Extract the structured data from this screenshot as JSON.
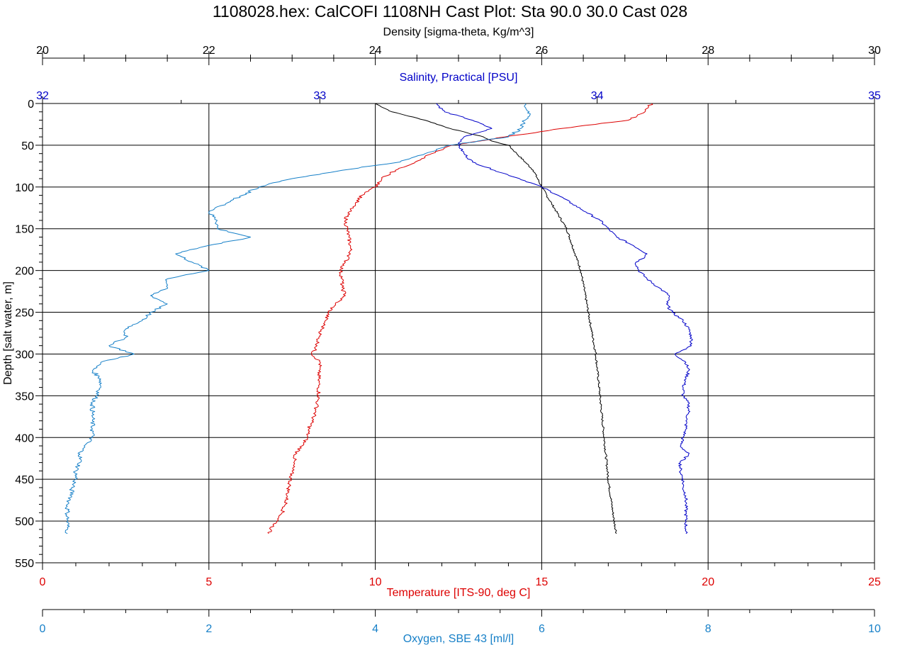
{
  "title": "1108028.hex: CalCOFI 1108NH Cast Plot: Sta 90.0 30.0 Cast 028",
  "colors": {
    "density": "#000000",
    "salinity": "#0000c8",
    "temperature": "#dd0000",
    "oxygen": "#1780c8",
    "grid": "#000000"
  },
  "chart_data": {
    "type": "line",
    "title": "1108028.hex: CalCOFI 1108NH Cast Plot: Sta 90.0 30.0 Cast 028",
    "y_axis": {
      "label": "Depth [salt water, m]",
      "range": [
        0,
        550
      ],
      "inverted": true,
      "ticks": [
        "0",
        "50",
        "100",
        "150",
        "200",
        "250",
        "300",
        "350",
        "400",
        "450",
        "500",
        "550"
      ]
    },
    "x_axes": [
      {
        "id": "density",
        "label": "Density [sigma-theta, Kg/m^3]",
        "position": "top",
        "range": [
          20,
          30
        ],
        "ticks": [
          "20",
          "22",
          "24",
          "26",
          "28",
          "30"
        ],
        "color": "#000000"
      },
      {
        "id": "salinity",
        "label": "Salinity, Practical [PSU]",
        "position": "top",
        "range": [
          32,
          35
        ],
        "ticks": [
          "32",
          "33",
          "34",
          "35"
        ],
        "color": "#0000c8"
      },
      {
        "id": "temperature",
        "label": "Temperature [ITS-90, deg C]",
        "position": "bottom",
        "range": [
          0,
          25
        ],
        "ticks": [
          "0",
          "5",
          "10",
          "15",
          "20",
          "25"
        ],
        "color": "#dd0000"
      },
      {
        "id": "oxygen",
        "label": "Oxygen, SBE 43 [ml/l]",
        "position": "bottom",
        "range": [
          0,
          10
        ],
        "ticks": [
          "0",
          "2",
          "4",
          "6",
          "8",
          "10"
        ],
        "color": "#1780c8"
      }
    ],
    "grid": true,
    "series": [
      {
        "axis": "density",
        "depth": [
          0,
          10,
          20,
          30,
          35,
          40,
          45,
          50,
          60,
          80,
          100,
          120,
          150,
          200,
          250,
          300,
          350,
          400,
          450,
          500,
          515
        ],
        "values": [
          24.0,
          24.2,
          24.6,
          24.9,
          25.1,
          25.3,
          25.4,
          25.6,
          25.7,
          25.9,
          26.0,
          26.12,
          26.3,
          26.47,
          26.56,
          26.65,
          26.7,
          26.75,
          26.8,
          26.87,
          26.9
        ]
      },
      {
        "axis": "salinity",
        "depth": [
          0,
          10,
          20,
          30,
          40,
          50,
          60,
          70,
          80,
          90,
          100,
          110,
          120,
          130,
          140,
          150,
          160,
          170,
          180,
          185,
          190,
          200,
          210,
          220,
          230,
          240,
          250,
          260,
          270,
          280,
          290,
          300,
          310,
          320,
          330,
          340,
          350,
          360,
          370,
          380,
          390,
          400,
          410,
          420,
          430,
          440,
          450,
          460,
          470,
          480,
          490,
          500,
          510,
          515
        ],
        "values": [
          33.42,
          33.45,
          33.55,
          33.62,
          33.52,
          33.5,
          33.52,
          33.55,
          33.63,
          33.72,
          33.8,
          33.86,
          33.91,
          33.96,
          34.01,
          34.04,
          34.07,
          34.13,
          34.18,
          34.17,
          34.14,
          34.15,
          34.18,
          34.22,
          34.26,
          34.25,
          34.27,
          34.31,
          34.33,
          34.34,
          34.34,
          34.28,
          34.32,
          34.33,
          34.32,
          34.31,
          34.31,
          34.33,
          34.33,
          34.32,
          34.32,
          34.31,
          34.3,
          34.33,
          34.3,
          34.3,
          34.31,
          34.31,
          34.32,
          34.32,
          34.32,
          34.32,
          34.32,
          34.32
        ]
      },
      {
        "axis": "temperature",
        "depth": [
          0,
          10,
          20,
          30,
          40,
          50,
          60,
          70,
          80,
          90,
          100,
          110,
          120,
          130,
          140,
          150,
          160,
          170,
          180,
          190,
          200,
          210,
          220,
          230,
          240,
          250,
          260,
          270,
          280,
          290,
          300,
          310,
          320,
          330,
          340,
          350,
          360,
          370,
          380,
          390,
          400,
          410,
          420,
          430,
          440,
          450,
          460,
          470,
          480,
          490,
          500,
          510,
          515
        ],
        "values": [
          18.3,
          18.1,
          17.6,
          15.6,
          13.9,
          12.3,
          11.7,
          11.2,
          10.6,
          10.2,
          10.0,
          9.6,
          9.4,
          9.2,
          9.1,
          9.15,
          9.2,
          9.25,
          9.25,
          9.1,
          8.95,
          9.0,
          9.0,
          9.1,
          8.8,
          8.6,
          8.5,
          8.4,
          8.3,
          8.25,
          8.1,
          8.35,
          8.3,
          8.3,
          8.3,
          8.3,
          8.25,
          8.2,
          8.1,
          8.0,
          7.95,
          7.8,
          7.6,
          7.55,
          7.5,
          7.45,
          7.4,
          7.35,
          7.3,
          7.2,
          7.05,
          6.85,
          6.8
        ]
      },
      {
        "axis": "oxygen",
        "depth": [
          0,
          10,
          20,
          30,
          40,
          50,
          60,
          70,
          80,
          90,
          100,
          110,
          120,
          130,
          140,
          150,
          160,
          170,
          180,
          190,
          200,
          210,
          220,
          230,
          240,
          250,
          260,
          270,
          280,
          290,
          300,
          310,
          320,
          330,
          340,
          350,
          360,
          370,
          380,
          390,
          400,
          410,
          420,
          430,
          440,
          450,
          460,
          470,
          480,
          490,
          500,
          510,
          515
        ],
        "values": [
          5.8,
          5.85,
          5.8,
          5.75,
          5.6,
          4.9,
          4.6,
          4.3,
          3.6,
          3.0,
          2.6,
          2.4,
          2.2,
          2.0,
          2.1,
          2.1,
          2.5,
          2.0,
          1.6,
          1.8,
          2.0,
          1.5,
          1.5,
          1.3,
          1.5,
          1.3,
          1.2,
          1.0,
          1.0,
          0.8,
          1.1,
          0.7,
          0.6,
          0.7,
          0.7,
          0.65,
          0.6,
          0.6,
          0.6,
          0.6,
          0.6,
          0.5,
          0.45,
          0.45,
          0.4,
          0.4,
          0.35,
          0.35,
          0.3,
          0.3,
          0.3,
          0.3,
          0.3
        ]
      }
    ]
  }
}
